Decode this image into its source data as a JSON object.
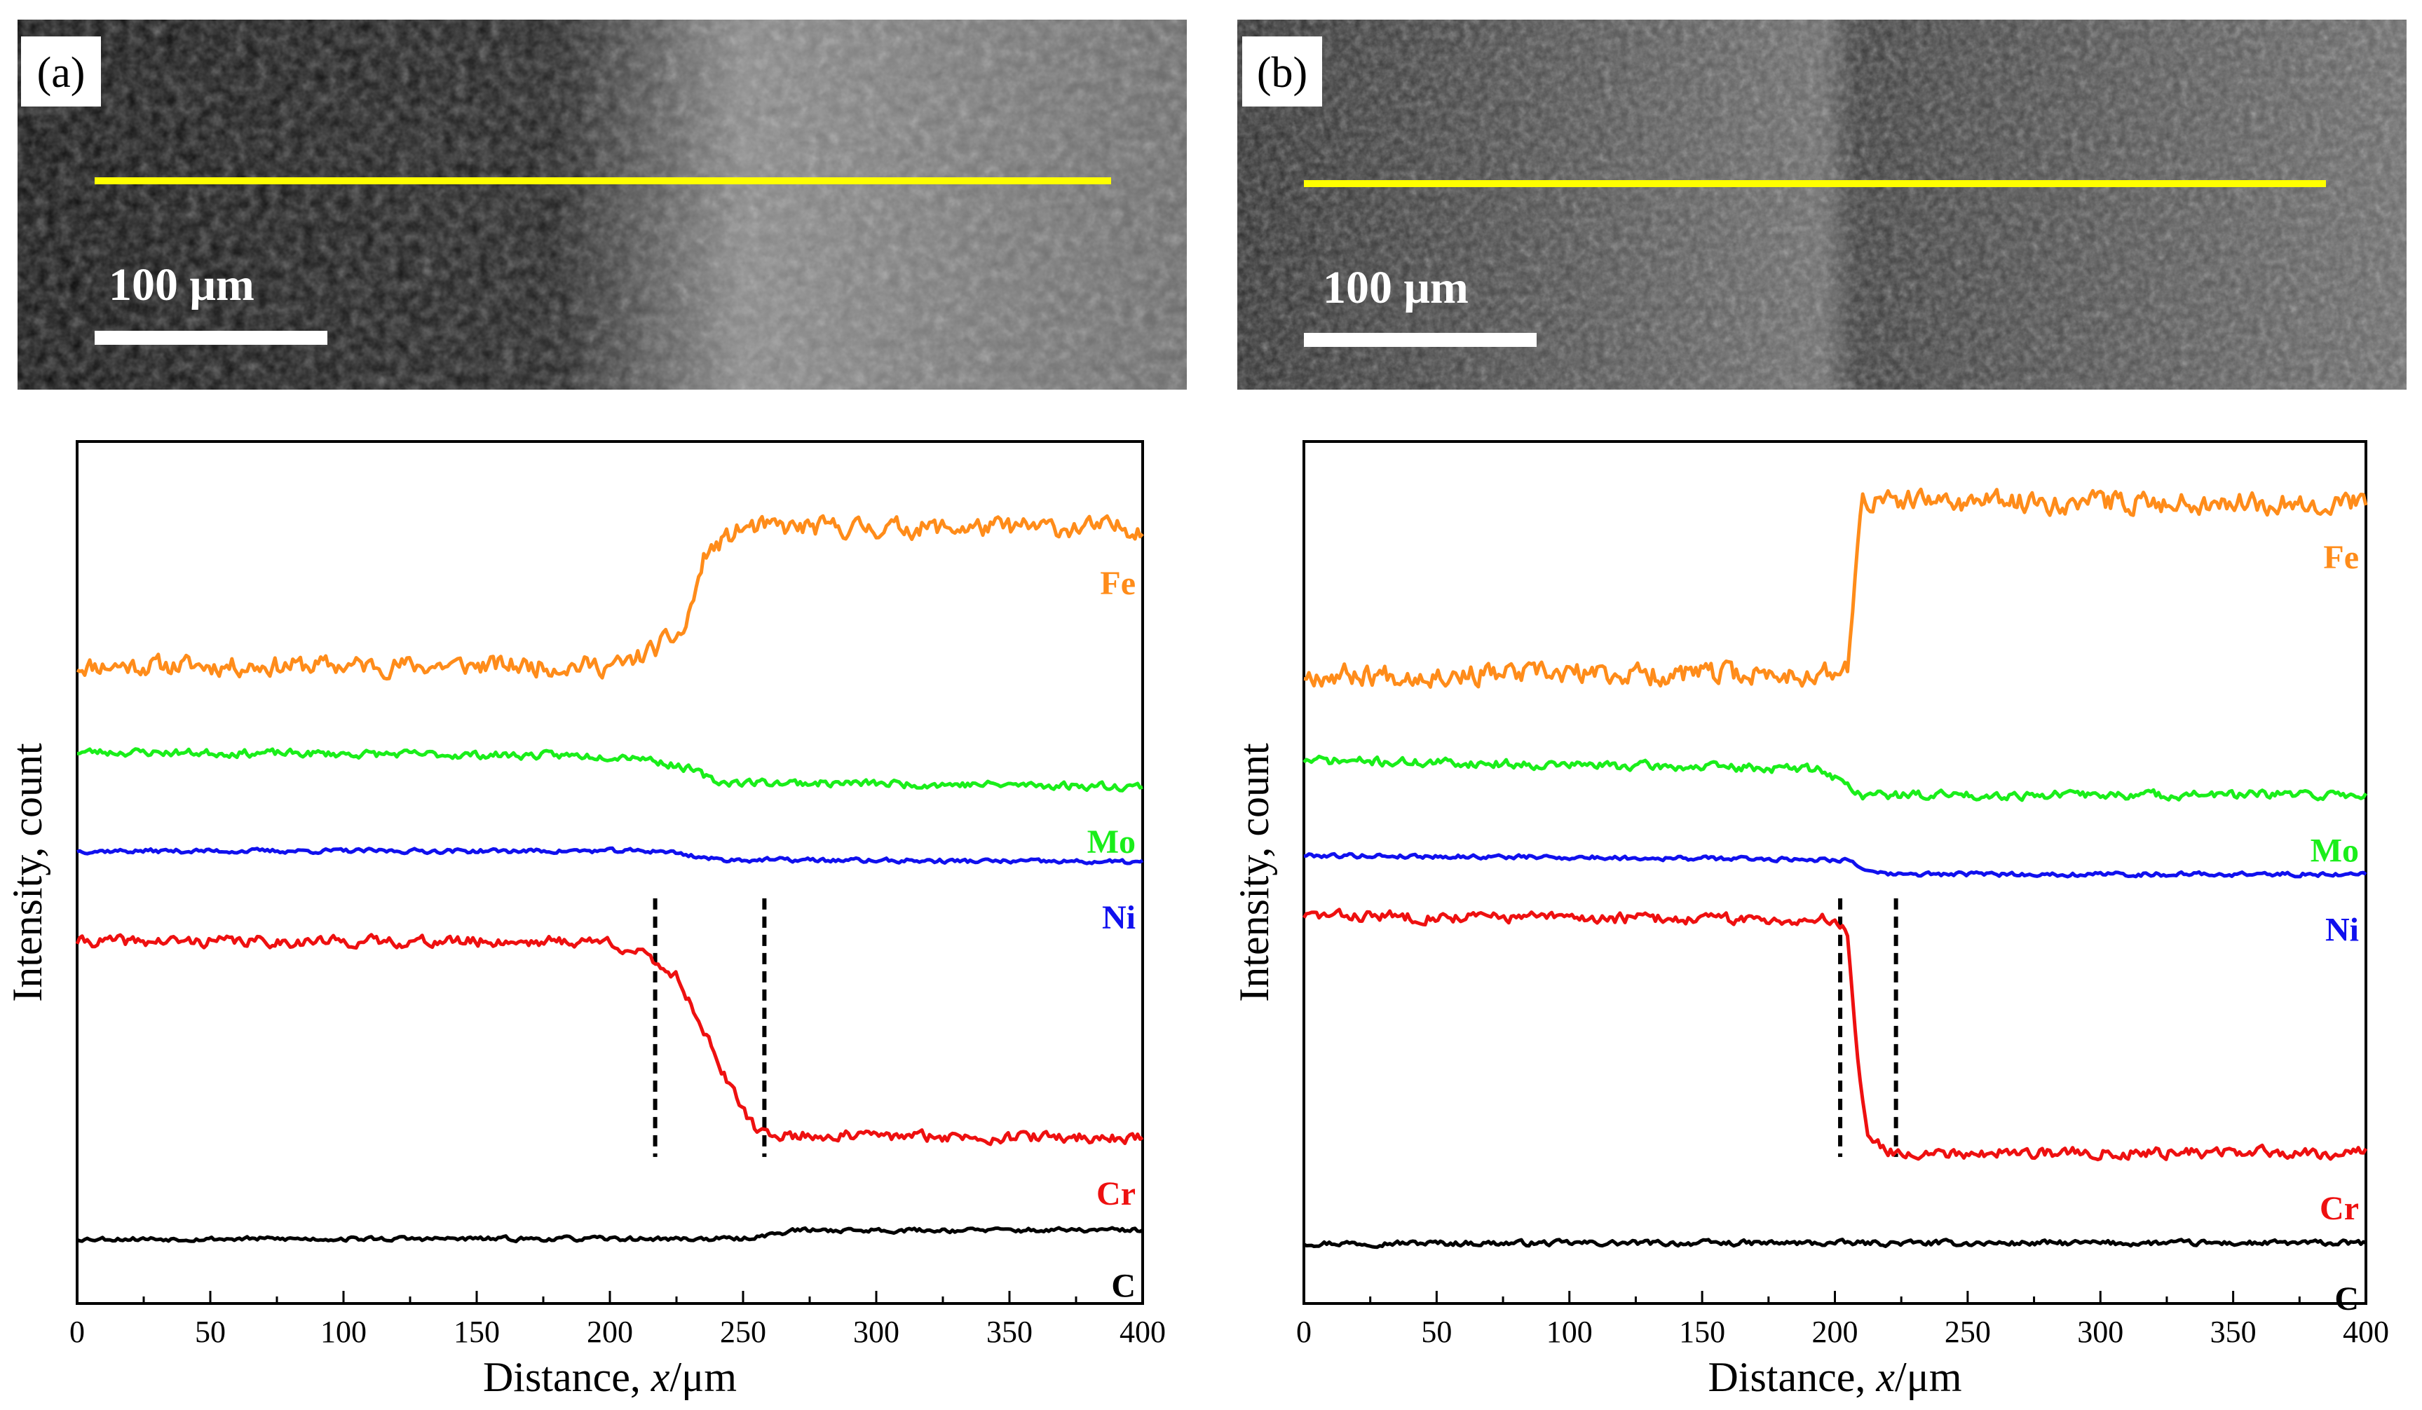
{
  "figure": {
    "panels": [
      {
        "id": "a",
        "label": "(a)",
        "scale_bar": "100 μm"
      },
      {
        "id": "b",
        "label": "(b)",
        "scale_bar": "100 μm"
      }
    ]
  },
  "colors": {
    "Fe": "#ff8c1a",
    "Mo": "#1aee1a",
    "Ni": "#1010ee",
    "Cr": "#ee1010",
    "C": "#000000",
    "line": "#ffff00"
  },
  "chart_data": [
    {
      "type": "line",
      "panel": "(a)",
      "xlabel_prefix": "Distance, ",
      "xlabel_var": "x",
      "xlabel_unit": "/μm",
      "ylabel": "Intensity, count",
      "xlim": [
        0,
        400
      ],
      "ylim": [
        0,
        100
      ],
      "xticks": [
        "0",
        "50",
        "100",
        "150",
        "200",
        "250",
        "300",
        "350",
        "400"
      ],
      "yticks": false,
      "transition_lines_um": [
        217,
        258
      ],
      "series": [
        {
          "name": "Fe",
          "color": "#ff8c1a",
          "points": [
            [
              0,
              74
            ],
            [
              205,
              74
            ],
            [
              217,
              76
            ],
            [
              228,
              78
            ],
            [
              236,
              87
            ],
            [
              250,
              90
            ],
            [
              400,
              90
            ]
          ],
          "noise": 1.8,
          "seed": 11
        },
        {
          "name": "Mo",
          "color": "#1aee1a",
          "points": [
            [
              0,
              64
            ],
            [
              210,
              63.5
            ],
            [
              230,
              62
            ],
            [
              240,
              60.5
            ],
            [
              400,
              60
            ]
          ],
          "noise": 0.7,
          "seed": 23
        },
        {
          "name": "Ni",
          "color": "#1010ee",
          "points": [
            [
              0,
              52.5
            ],
            [
              220,
              52.5
            ],
            [
              240,
              51.5
            ],
            [
              400,
              51.2
            ]
          ],
          "noise": 0.4,
          "seed": 37
        },
        {
          "name": "Cr",
          "color": "#ee1010",
          "points": [
            [
              0,
              42
            ],
            [
              200,
              42
            ],
            [
              215,
              40
            ],
            [
              225,
              38
            ],
            [
              235,
              32
            ],
            [
              245,
              25
            ],
            [
              255,
              20
            ],
            [
              265,
              19.5
            ],
            [
              400,
              19.2
            ]
          ],
          "noise": 1.0,
          "seed": 41
        },
        {
          "name": "C",
          "color": "#000000",
          "points": [
            [
              0,
              7.5
            ],
            [
              250,
              7.5
            ],
            [
              270,
              8.5
            ],
            [
              400,
              8.5
            ]
          ],
          "noise": 0.4,
          "seed": 53
        }
      ]
    },
    {
      "type": "line",
      "panel": "(b)",
      "xlabel_prefix": "Distance, ",
      "xlabel_var": "x",
      "xlabel_unit": "/μm",
      "ylabel": "Intensity, count",
      "xlim": [
        0,
        400
      ],
      "ylim": [
        0,
        100
      ],
      "xticks": [
        "0",
        "50",
        "100",
        "150",
        "200",
        "250",
        "300",
        "350",
        "400"
      ],
      "yticks": false,
      "transition_lines_um": [
        202,
        223
      ],
      "series": [
        {
          "name": "Fe",
          "color": "#ff8c1a",
          "points": [
            [
              0,
              73
            ],
            [
              202,
              73
            ],
            [
              205,
              74
            ],
            [
              210,
              93
            ],
            [
              400,
              93
            ]
          ],
          "noise": 2.0,
          "seed": 67
        },
        {
          "name": "Mo",
          "color": "#1aee1a",
          "points": [
            [
              0,
              63
            ],
            [
              195,
              62
            ],
            [
              210,
              59
            ],
            [
              400,
              59
            ]
          ],
          "noise": 0.8,
          "seed": 71
        },
        {
          "name": "Ni",
          "color": "#1010ee",
          "points": [
            [
              0,
              52
            ],
            [
              205,
              51.5
            ],
            [
              215,
              49.8
            ],
            [
              400,
              49.8
            ]
          ],
          "noise": 0.4,
          "seed": 79
        },
        {
          "name": "Cr",
          "color": "#ee1010",
          "points": [
            [
              0,
              45
            ],
            [
              200,
              44.5
            ],
            [
              205,
              43
            ],
            [
              208,
              30
            ],
            [
              212,
              20
            ],
            [
              220,
              17.5
            ],
            [
              400,
              17.5
            ]
          ],
          "noise": 1.0,
          "seed": 83
        },
        {
          "name": "C",
          "color": "#000000",
          "points": [
            [
              0,
              7
            ],
            [
              400,
              7
            ]
          ],
          "noise": 0.5,
          "seed": 97
        }
      ]
    }
  ]
}
